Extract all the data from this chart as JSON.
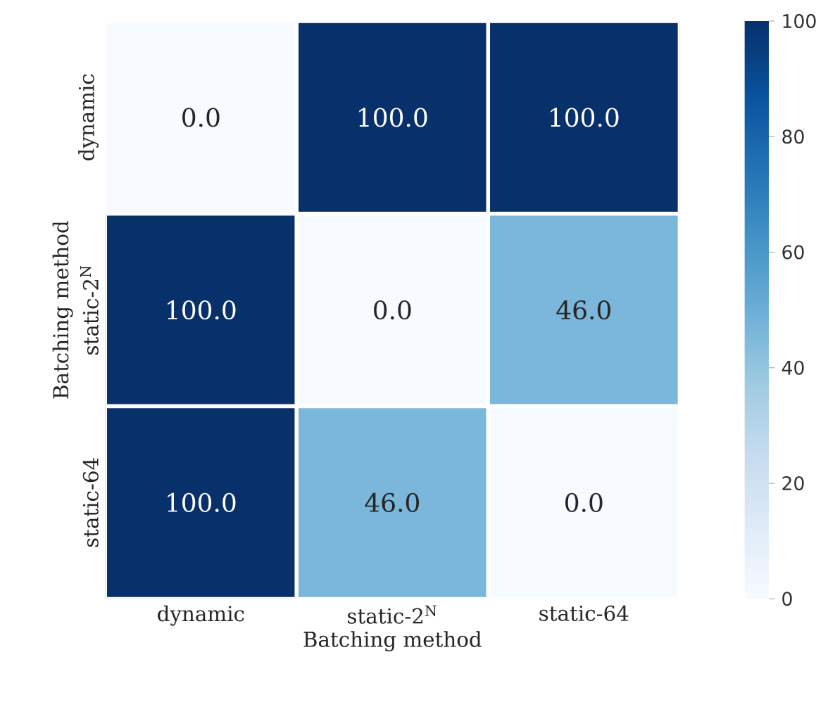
{
  "chart_data": {
    "type": "heatmap",
    "xlabel": "Batching method",
    "ylabel": "Batching method",
    "categories": [
      "dynamic",
      "static-2$^{N}$",
      "static-64"
    ],
    "y_categories": [
      "dynamic",
      "static-2$^{N}$",
      "static-64"
    ],
    "cells": [
      [
        0,
        100,
        100
      ],
      [
        100,
        0,
        46
      ],
      [
        100,
        46,
        0
      ]
    ],
    "cell_labels": [
      [
        "0.0",
        "100.0",
        "100.0"
      ],
      [
        "100.0",
        "0.0",
        "46.0"
      ],
      [
        "100.0",
        "46.0",
        "0.0"
      ]
    ],
    "clim": [
      0,
      100
    ],
    "cticks": [
      0,
      20,
      40,
      60,
      80,
      100
    ]
  }
}
